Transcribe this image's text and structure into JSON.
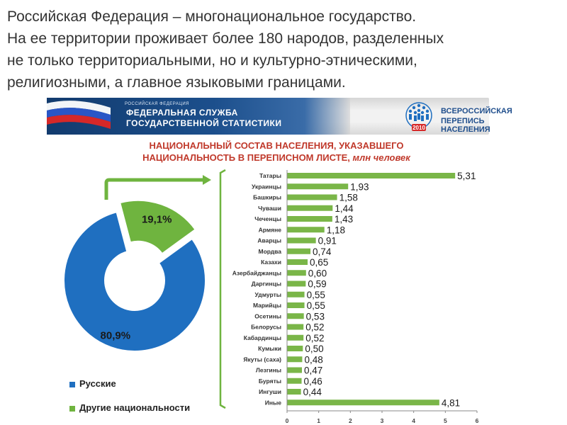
{
  "heading": {
    "lines": [
      "Российская Федерация – многонациональное государство.",
      "На ее территории проживает более 180 народов, разделенных",
      "не только территориальными, но и культурно-этническими,",
      "религиозными, а главное языковыми границами."
    ]
  },
  "banner": {
    "small_text": "РОССИЙСКАЯ ФЕДЕРАЦИЯ",
    "left_line1": "ФЕДЕРАЛЬНАЯ СЛУЖБА",
    "left_line2": "ГОСУДАРСТВЕННОЙ СТАТИСТИКИ",
    "right_line1": "ВСЕРОССИЙСКАЯ",
    "right_line2": "ПЕРЕПИСЬ НАСЕЛЕНИЯ",
    "logo_year": "2010",
    "logo_icon": "census-people-circle-icon",
    "flag_icon": "russian-flag-icon"
  },
  "chart_title": {
    "line1": "НАЦИОНАЛЬНЫЙ СОСТАВ НАСЕЛЕНИЯ, УКАЗАВШЕГО",
    "line2_main": "НАЦИОНАЛЬНОСТЬ В ПЕРЕПИСНОМ ЛИСТЕ,",
    "line2_unit": "млн человек"
  },
  "colors": {
    "title_red": "#c0392b",
    "bar_green": "#7ab648",
    "pie_blue": "#1f6fc0",
    "pie_green": "#6fb43f",
    "banner_blue": "#1c4f8c"
  },
  "chart_data": [
    {
      "type": "pie",
      "variant": "donut",
      "slices": [
        {
          "label": "Русские",
          "value": 80.9,
          "value_label": "80,9%"
        },
        {
          "label": "Другие национальности",
          "value": 19.1,
          "value_label": "19,1%"
        }
      ],
      "legend": [
        "Русские",
        "Другие национальности"
      ],
      "legend_position": "bottom"
    },
    {
      "type": "bar",
      "orientation": "horizontal",
      "categories": [
        "Татары",
        "Украинцы",
        "Башкиры",
        "Чуваши",
        "Чеченцы",
        "Армяне",
        "Аварцы",
        "Мордва",
        "Казахи",
        "Азербайджанцы",
        "Даргинцы",
        "Удмурты",
        "Марийцы",
        "Осетины",
        "Белорусы",
        "Кабардинцы",
        "Кумыки",
        "Якуты (саха)",
        "Лезгины",
        "Буряты",
        "Ингуши",
        "Иные"
      ],
      "values": [
        5.31,
        1.93,
        1.58,
        1.44,
        1.43,
        1.18,
        0.91,
        0.74,
        0.65,
        0.6,
        0.59,
        0.55,
        0.55,
        0.53,
        0.52,
        0.52,
        0.5,
        0.48,
        0.47,
        0.46,
        0.44,
        4.81
      ],
      "value_labels": [
        "5,31",
        "1,93",
        "1,58",
        "1,44",
        "1,43",
        "1,18",
        "0,91",
        "0,74",
        "0,65",
        "0,60",
        "0,59",
        "0,55",
        "0,55",
        "0,53",
        "0,52",
        "0,52",
        "0,50",
        "0,48",
        "0,47",
        "0,46",
        "0,44",
        "4,81"
      ],
      "xlim": [
        0,
        6
      ],
      "xticks": [
        "0",
        "1",
        "2",
        "3",
        "4",
        "5",
        "6"
      ],
      "grid": false
    }
  ]
}
